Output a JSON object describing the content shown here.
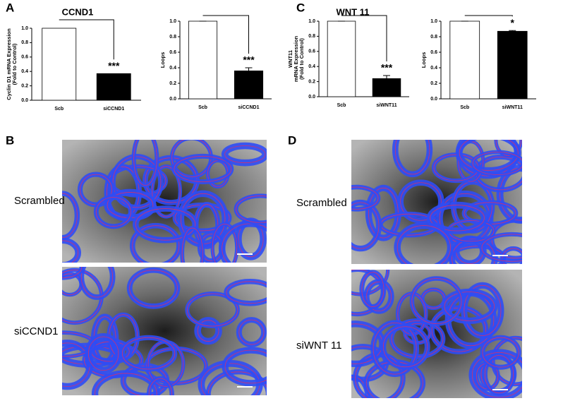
{
  "chart_data": [
    {
      "type": "bar",
      "panel": "A",
      "title": "CCND1",
      "ylabel": [
        "Cyclin D1 mRNA Expression",
        "(Fold to Control)"
      ],
      "categories": [
        "Scb",
        "siCCND1"
      ],
      "values": [
        1.0,
        0.37
      ],
      "colors": [
        "#ffffff",
        "#000000"
      ],
      "ylim": [
        0,
        1
      ],
      "yticks": [
        {
          "value": 0,
          "label": "0.0"
        },
        0.2,
        0.4,
        0.6,
        0.8,
        {
          "value": 1,
          "label": "1.0"
        }
      ],
      "annotation": "***"
    },
    {
      "type": "bar",
      "ylabel": [
        "Loops"
      ],
      "categories": [
        "Scb",
        "siCCND1"
      ],
      "values": [
        1.0,
        0.36
      ],
      "errors": [
        0,
        0.04
      ],
      "colors": [
        "#ffffff",
        "#000000"
      ],
      "ylim": [
        0,
        1
      ],
      "yticks": [
        {
          "value": 0,
          "label": "0.0"
        },
        0.2,
        0.4,
        0.6,
        0.8,
        {
          "value": 1,
          "label": "1.0"
        }
      ],
      "annotation": "***"
    },
    {
      "type": "bar",
      "panel": "C",
      "title": "WNT 11",
      "ylabel": [
        "WNT11",
        "mRNA Expression",
        "(Fold to Control)"
      ],
      "categories": [
        "Scb",
        "siWNT11"
      ],
      "values": [
        1.0,
        0.24
      ],
      "errors": [
        0,
        0.04
      ],
      "colors": [
        "#ffffff",
        "#000000"
      ],
      "ylim": [
        0,
        1
      ],
      "yticks": [
        {
          "value": 0,
          "label": "0.0"
        },
        0.2,
        0.4,
        0.6,
        0.8,
        {
          "value": 1,
          "label": "1.0"
        }
      ],
      "annotation": "***"
    },
    {
      "type": "bar",
      "ylabel": [
        "Loops"
      ],
      "categories": [
        "Scb",
        "siWNT11"
      ],
      "values": [
        1.0,
        0.87
      ],
      "errors": [
        0,
        0.01
      ],
      "colors": [
        "#ffffff",
        "#000000"
      ],
      "ylim": [
        0,
        1
      ],
      "yticks": [
        {
          "value": 0,
          "label": "0.0"
        },
        0.2,
        0.4,
        0.6,
        0.8,
        {
          "value": 1,
          "label": "1.0"
        }
      ],
      "annotation": "*"
    }
  ],
  "images": [
    {
      "panel": "B",
      "rows": [
        {
          "label": "Scrambled"
        },
        {
          "label": "siCCND1"
        }
      ]
    },
    {
      "panel": "D",
      "rows": [
        {
          "label": "Scrambled"
        },
        {
          "label": "siWNT 11"
        }
      ]
    }
  ]
}
